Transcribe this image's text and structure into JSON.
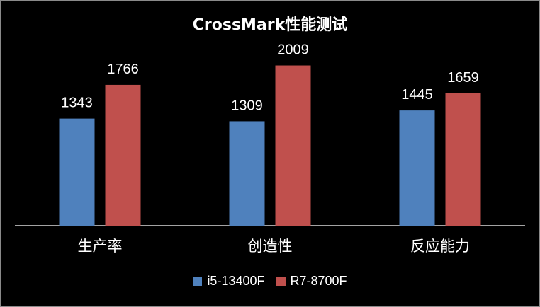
{
  "chart_data": {
    "type": "bar",
    "title": "CrossMark性能测试",
    "categories": [
      "生产率",
      "创造性",
      "反应能力"
    ],
    "series": [
      {
        "name": "i5-13400F",
        "color": "#4F81BD",
        "values": [
          1343,
          1309,
          1445
        ]
      },
      {
        "name": "R7-8700F",
        "color": "#C0504D",
        "values": [
          1766,
          2009,
          1659
        ]
      }
    ],
    "ylim": [
      0,
      2200
    ],
    "grid": false,
    "legend_position": "bottom",
    "background": "#000000",
    "text_color": "#FFFFFF"
  }
}
